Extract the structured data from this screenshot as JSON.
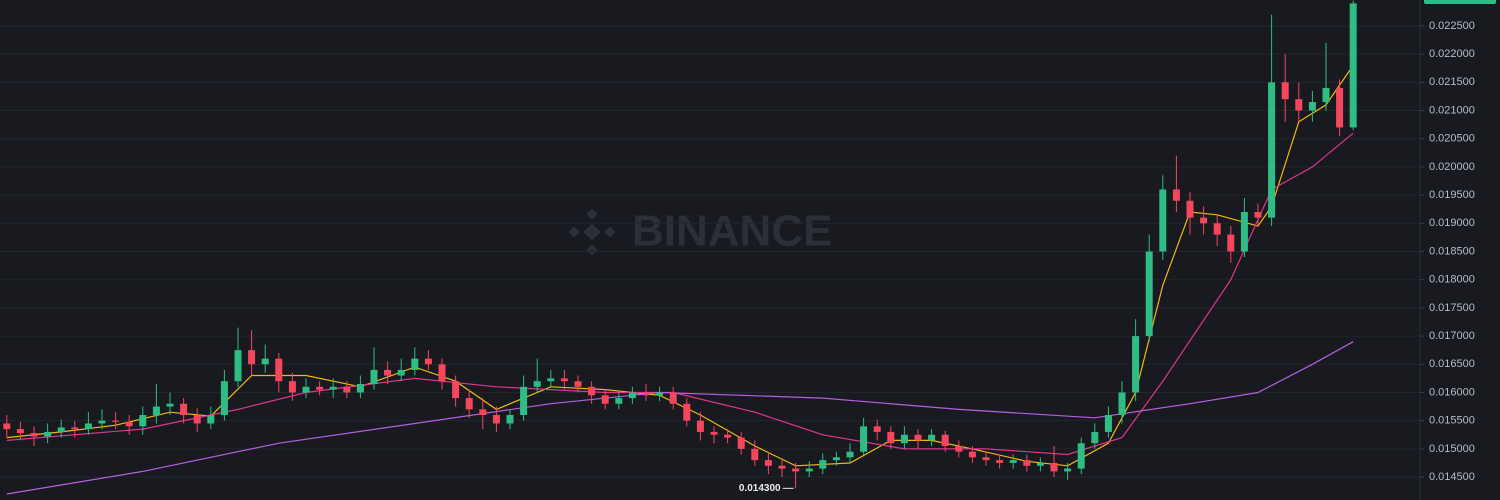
{
  "chart_data": {
    "type": "candlestick",
    "watermark": "BINANCE",
    "up_color": "#2ebd85",
    "down_color": "#f6465d",
    "open": [
      0.01545,
      0.01535,
      0.01528,
      0.01522,
      0.0153,
      0.01538,
      0.01535,
      0.01545,
      0.0155,
      0.01548,
      0.0154,
      0.0156,
      0.01575,
      0.0158,
      0.0156,
      0.01545,
      0.0156,
      0.0162,
      0.01675,
      0.0165,
      0.0166,
      0.0162,
      0.016,
      0.0161,
      0.01605,
      0.0161,
      0.016,
      0.01615,
      0.0164,
      0.0163,
      0.0164,
      0.0166,
      0.0165,
      0.0162,
      0.0159,
      0.0157,
      0.0156,
      0.01545,
      0.0156,
      0.0161,
      0.0162,
      0.01625,
      0.0162,
      0.0161,
      0.01595,
      0.0158,
      0.0159,
      0.016,
      0.01595,
      0.016,
      0.0158,
      0.0155,
      0.0153,
      0.01525,
      0.0152,
      0.015,
      0.0148,
      0.0147,
      0.01465,
      0.0146,
      0.01465,
      0.0148,
      0.01485,
      0.01495,
      0.0154,
      0.0153,
      0.0151,
      0.01525,
      0.01515,
      0.01525,
      0.01505,
      0.01495,
      0.01485,
      0.0148,
      0.01475,
      0.0148,
      0.0147,
      0.01475,
      0.0146,
      0.01465,
      0.0151,
      0.0153,
      0.0156,
      0.016,
      0.017,
      0.0185,
      0.0196,
      0.0194,
      0.0191,
      0.019,
      0.0188,
      0.0185,
      0.0192,
      0.0191,
      0.0215,
      0.0212,
      0.021,
      0.02115,
      0.0214,
      0.0207
    ],
    "high": [
      0.0156,
      0.01548,
      0.0154,
      0.01545,
      0.01552,
      0.0155,
      0.01565,
      0.0157,
      0.01565,
      0.0156,
      0.01575,
      0.01615,
      0.016,
      0.0159,
      0.01572,
      0.01575,
      0.0164,
      0.01715,
      0.0171,
      0.01685,
      0.0167,
      0.01635,
      0.01625,
      0.0162,
      0.01625,
      0.0162,
      0.0163,
      0.0168,
      0.01655,
      0.0166,
      0.0168,
      0.01675,
      0.0166,
      0.0163,
      0.01605,
      0.0159,
      0.01575,
      0.0157,
      0.0163,
      0.0166,
      0.0164,
      0.0164,
      0.0163,
      0.0162,
      0.01605,
      0.016,
      0.0161,
      0.01615,
      0.0161,
      0.0161,
      0.0159,
      0.01565,
      0.0154,
      0.01535,
      0.0153,
      0.01515,
      0.01495,
      0.0148,
      0.01475,
      0.01478,
      0.01492,
      0.01495,
      0.0151,
      0.01555,
      0.01552,
      0.0154,
      0.0154,
      0.01535,
      0.01535,
      0.01532,
      0.01515,
      0.01505,
      0.01495,
      0.0149,
      0.0149,
      0.0149,
      0.01485,
      0.01505,
      0.01475,
      0.0152,
      0.01545,
      0.01575,
      0.0162,
      0.0173,
      0.0188,
      0.01985,
      0.0202,
      0.01955,
      0.0193,
      0.01915,
      0.01895,
      0.01945,
      0.01935,
      0.0227,
      0.022,
      0.0215,
      0.02135,
      0.0222,
      0.02155,
      0.02295
    ],
    "low": [
      0.0152,
      0.01515,
      0.01505,
      0.0151,
      0.0152,
      0.0152,
      0.01525,
      0.01535,
      0.01535,
      0.01525,
      0.01525,
      0.01545,
      0.0156,
      0.01545,
      0.0153,
      0.01535,
      0.0155,
      0.0161,
      0.0163,
      0.01635,
      0.016,
      0.01585,
      0.0159,
      0.01595,
      0.0159,
      0.0159,
      0.0159,
      0.01605,
      0.01615,
      0.0162,
      0.0163,
      0.0164,
      0.01605,
      0.01575,
      0.01555,
      0.01535,
      0.0153,
      0.01535,
      0.0155,
      0.016,
      0.0161,
      0.01605,
      0.016,
      0.0158,
      0.0157,
      0.0157,
      0.0158,
      0.01585,
      0.01585,
      0.0157,
      0.0154,
      0.01515,
      0.0151,
      0.0151,
      0.0149,
      0.0147,
      0.01455,
      0.0145,
      0.0143,
      0.0145,
      0.01455,
      0.0147,
      0.01475,
      0.0149,
      0.01515,
      0.015,
      0.015,
      0.015,
      0.01505,
      0.01495,
      0.01485,
      0.01475,
      0.0147,
      0.01465,
      0.01465,
      0.0146,
      0.0146,
      0.0145,
      0.01445,
      0.01455,
      0.015,
      0.0152,
      0.01545,
      0.01585,
      0.0169,
      0.01835,
      0.0192,
      0.0188,
      0.0188,
      0.0186,
      0.0183,
      0.0184,
      0.01895,
      0.01895,
      0.0208,
      0.0208,
      0.0208,
      0.021,
      0.02055,
      0.02065
    ],
    "close": [
      0.01535,
      0.01528,
      0.01522,
      0.0153,
      0.01538,
      0.01535,
      0.01545,
      0.0155,
      0.01548,
      0.0154,
      0.0156,
      0.01575,
      0.0158,
      0.0156,
      0.01545,
      0.0156,
      0.0162,
      0.01675,
      0.0165,
      0.0166,
      0.0162,
      0.016,
      0.0161,
      0.01605,
      0.0161,
      0.016,
      0.01615,
      0.0164,
      0.0163,
      0.0164,
      0.0166,
      0.0165,
      0.0162,
      0.0159,
      0.0157,
      0.0156,
      0.01545,
      0.0156,
      0.0161,
      0.0162,
      0.01625,
      0.0162,
      0.0161,
      0.01595,
      0.0158,
      0.0159,
      0.016,
      0.01595,
      0.016,
      0.0158,
      0.0155,
      0.0153,
      0.01525,
      0.0152,
      0.015,
      0.0148,
      0.0147,
      0.01465,
      0.0146,
      0.01465,
      0.0148,
      0.01485,
      0.01495,
      0.0154,
      0.0153,
      0.0151,
      0.01525,
      0.01515,
      0.01525,
      0.01505,
      0.01495,
      0.01485,
      0.0148,
      0.01475,
      0.0148,
      0.0147,
      0.01475,
      0.0146,
      0.01465,
      0.0151,
      0.0153,
      0.0156,
      0.016,
      0.017,
      0.0185,
      0.0196,
      0.0194,
      0.0191,
      0.019,
      0.0188,
      0.0185,
      0.0192,
      0.0191,
      0.0215,
      0.0212,
      0.021,
      0.02115,
      0.0214,
      0.0207,
      0.0229
    ],
    "lines": [
      {
        "color": "#f0b90b",
        "x": [
          0,
          4,
          8,
          12,
          15,
          18,
          22,
          26,
          30,
          33,
          36,
          40,
          44,
          48,
          51,
          55,
          58,
          62,
          65,
          68,
          71,
          75,
          78,
          81,
          83,
          85,
          87,
          89,
          92,
          93,
          95,
          97,
          99
        ],
        "values": [
          0.0152,
          0.0153,
          0.01542,
          0.01565,
          0.01558,
          0.0163,
          0.0163,
          0.0161,
          0.01645,
          0.0162,
          0.0157,
          0.0161,
          0.01605,
          0.01595,
          0.0156,
          0.01505,
          0.0147,
          0.01475,
          0.01515,
          0.01515,
          0.015,
          0.01478,
          0.0147,
          0.0151,
          0.016,
          0.0179,
          0.0192,
          0.01915,
          0.01895,
          0.0193,
          0.0208,
          0.0211,
          0.0218
        ]
      },
      {
        "color": "#e0348f",
        "x": [
          0,
          10,
          17,
          22,
          30,
          36,
          44,
          49,
          55,
          60,
          66,
          72,
          78,
          82,
          85,
          90,
          93,
          96,
          99
        ],
        "values": [
          0.01515,
          0.01535,
          0.0157,
          0.016,
          0.01625,
          0.0161,
          0.016,
          0.016,
          0.01565,
          0.01525,
          0.015,
          0.015,
          0.0149,
          0.0152,
          0.0162,
          0.018,
          0.0196,
          0.02,
          0.0206
        ]
      },
      {
        "color": "#b65fe0",
        "x": [
          0,
          10,
          20,
          30,
          40,
          48,
          60,
          70,
          80,
          87,
          92,
          96,
          99
        ],
        "values": [
          0.0142,
          0.0146,
          0.0151,
          0.01545,
          0.0158,
          0.016,
          0.0159,
          0.0157,
          0.01555,
          0.0158,
          0.016,
          0.0165,
          0.0169
        ]
      }
    ],
    "low_label": {
      "value": 0.0143,
      "label": "0.014300",
      "index": 58
    },
    "ylim": [
      0.014093,
      0.02296
    ],
    "yticks": [
      {
        "value": 0.0145,
        "label": "0.014500"
      },
      {
        "value": 0.015,
        "label": "0.015000"
      },
      {
        "value": 0.0155,
        "label": "0.015500"
      },
      {
        "value": 0.016,
        "label": "0.016000"
      },
      {
        "value": 0.0165,
        "label": "0.016500"
      },
      {
        "value": 0.017,
        "label": "0.017000"
      },
      {
        "value": 0.0175,
        "label": "0.017500"
      },
      {
        "value": 0.018,
        "label": "0.018000"
      },
      {
        "value": 0.0185,
        "label": "0.018500"
      },
      {
        "value": 0.019,
        "label": "0.019000"
      },
      {
        "value": 0.0195,
        "label": "0.019500"
      },
      {
        "value": 0.02,
        "label": "0.020000"
      },
      {
        "value": 0.0205,
        "label": "0.020500"
      },
      {
        "value": 0.021,
        "label": "0.021000"
      },
      {
        "value": 0.0215,
        "label": "0.021500"
      },
      {
        "value": 0.022,
        "label": "0.022000"
      },
      {
        "value": 0.0225,
        "label": "0.022500"
      }
    ],
    "grid": true
  }
}
